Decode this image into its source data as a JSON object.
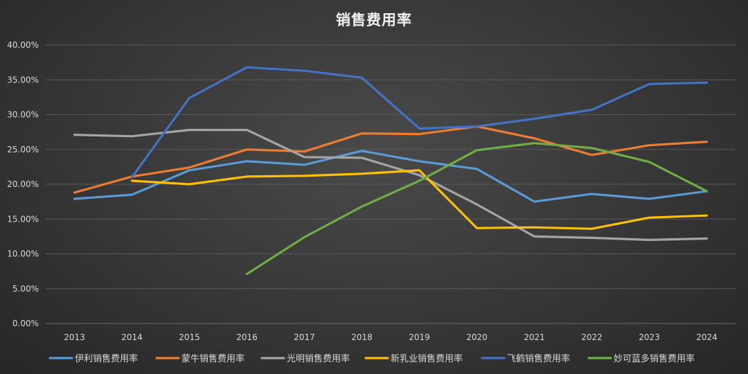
{
  "chart_data": {
    "type": "line",
    "title": "销售费用率",
    "categories": [
      "2013",
      "2014",
      "2015",
      "2016",
      "2017",
      "2018",
      "2019",
      "2020",
      "2021",
      "2022",
      "2023",
      "2024"
    ],
    "ylim": [
      0,
      40
    ],
    "y_ticks": [
      "0.00%",
      "5.00%",
      "10.00%",
      "15.00%",
      "20.00%",
      "25.00%",
      "30.00%",
      "35.00%",
      "40.00%"
    ],
    "grid": true,
    "legend_position": "bottom",
    "series": [
      {
        "name": "伊利销售费用率",
        "color": "#5b9bd5",
        "values": [
          17.9,
          18.5,
          22.0,
          23.3,
          22.8,
          24.8,
          23.3,
          22.2,
          17.5,
          18.6,
          17.9,
          19.0
        ]
      },
      {
        "name": "蒙牛销售费用率",
        "color": "#ed7d31",
        "values": [
          18.8,
          21.1,
          22.4,
          25.0,
          24.7,
          27.3,
          27.2,
          28.3,
          26.6,
          24.2,
          25.6,
          26.1
        ]
      },
      {
        "name": "光明销售费用率",
        "color": "#a5a5a5",
        "values": [
          27.1,
          26.9,
          27.8,
          27.8,
          23.9,
          23.8,
          21.3,
          17.1,
          12.5,
          12.3,
          12.0,
          12.2
        ]
      },
      {
        "name": "新乳业销售费用率",
        "color": "#ffc000",
        "values": [
          null,
          20.5,
          20.0,
          21.1,
          21.2,
          21.5,
          22.0,
          13.7,
          13.8,
          13.6,
          15.2,
          15.5
        ]
      },
      {
        "name": "飞鹤销售费用率",
        "color": "#4472c4",
        "values": [
          null,
          21.0,
          32.4,
          36.8,
          36.3,
          35.3,
          28.0,
          28.3,
          29.4,
          30.7,
          34.4,
          34.6
        ]
      },
      {
        "name": "妙可蓝多销售费用率",
        "color": "#70ad47",
        "values": [
          null,
          null,
          null,
          7.1,
          12.4,
          16.8,
          20.5,
          24.9,
          25.9,
          25.2,
          23.2,
          19.0
        ]
      }
    ]
  }
}
